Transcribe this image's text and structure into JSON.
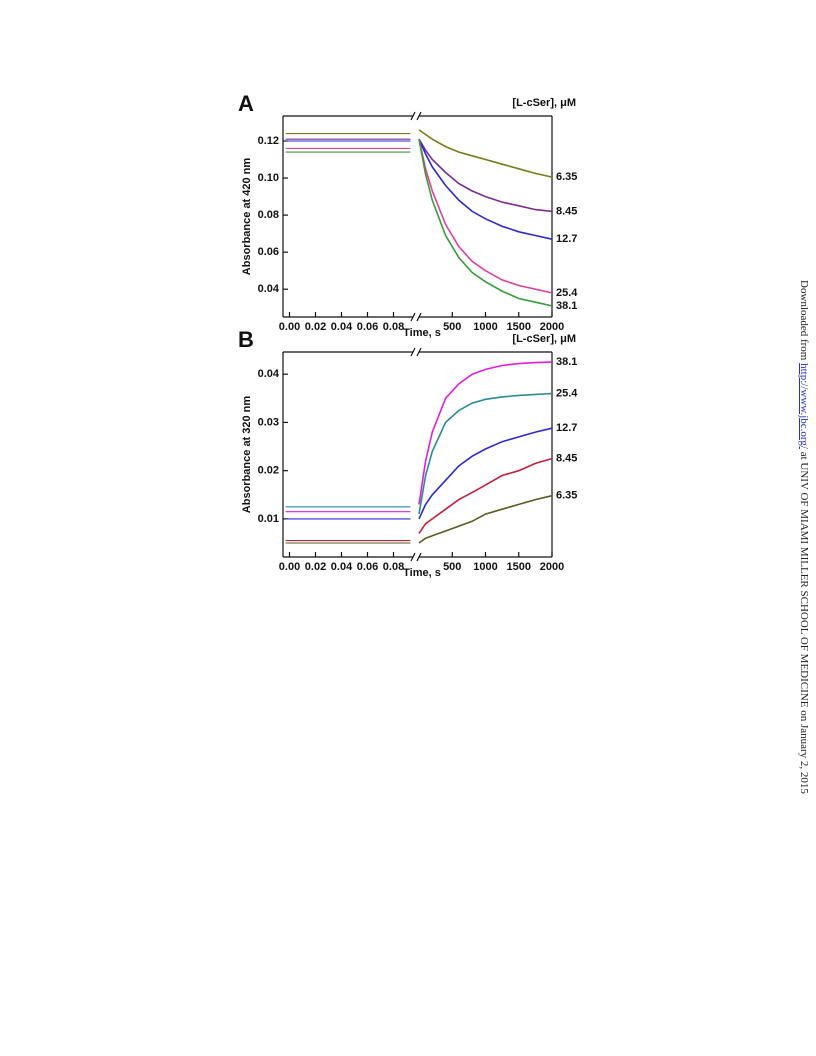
{
  "chart_data": [
    {
      "type": "line",
      "panel": "A",
      "legend_title": "[L-cSer], μM",
      "ylabel": "Absorbance at 420 nm",
      "xlabel": "Time, s",
      "ylim": [
        0.025,
        0.1335
      ],
      "yticks": [
        0.04,
        0.06,
        0.08,
        {
          "value": 0.1,
          "label": "0.10"
        },
        0.12
      ],
      "xlim_left": [
        -0.005,
        0.095
      ],
      "xticks_left": [
        {
          "value": 0,
          "label": "0.00"
        },
        0.02,
        0.04,
        0.06,
        0.08
      ],
      "xlim_right": [
        0,
        2000
      ],
      "xticks_right": [
        500,
        1000,
        1500,
        2000
      ],
      "series": [
        {
          "name": "6.35",
          "color": "#7a7a1a",
          "left": {
            "x": [
              -0.003,
              0.093
            ],
            "values": [
              0.124,
              0.124
            ]
          },
          "right": {
            "x": [
              0,
              100,
              200,
              400,
              600,
              800,
              1000,
              1250,
              1500,
              1750,
              2000
            ],
            "values": [
              0.126,
              0.1235,
              0.121,
              0.117,
              0.114,
              0.112,
              0.11,
              0.1075,
              0.105,
              0.1025,
              0.1005
            ]
          }
        },
        {
          "name": "8.45",
          "color": "#7b2d8e",
          "left": {
            "x": [
              -0.003,
              0.093
            ],
            "values": [
              0.121,
              0.121
            ]
          },
          "right": {
            "x": [
              0,
              100,
              200,
              400,
              600,
              800,
              1000,
              1250,
              1500,
              1750,
              2000
            ],
            "values": [
              0.121,
              0.115,
              0.11,
              0.103,
              0.097,
              0.093,
              0.09,
              0.087,
              0.085,
              0.083,
              0.082
            ]
          }
        },
        {
          "name": "12.7",
          "color": "#2a2ad0",
          "left": {
            "x": [
              -0.003,
              0.093
            ],
            "values": [
              0.12,
              0.12
            ]
          },
          "right": {
            "x": [
              0,
              100,
              200,
              400,
              600,
              800,
              1000,
              1250,
              1500,
              1750,
              2000
            ],
            "values": [
              0.121,
              0.113,
              0.106,
              0.096,
              0.088,
              0.082,
              0.078,
              0.074,
              0.071,
              0.069,
              0.067
            ]
          }
        },
        {
          "name": "25.4",
          "color": "#e0409a",
          "left": {
            "x": [
              -0.003,
              0.093
            ],
            "values": [
              0.116,
              0.116
            ]
          },
          "right": {
            "x": [
              0,
              100,
              200,
              400,
              600,
              800,
              1000,
              1250,
              1500,
              1750,
              2000
            ],
            "values": [
              0.121,
              0.105,
              0.093,
              0.075,
              0.063,
              0.055,
              0.05,
              0.045,
              0.042,
              0.04,
              0.038
            ]
          }
        },
        {
          "name": "38.1",
          "color": "#3a9a3a",
          "left": {
            "x": [
              -0.003,
              0.093
            ],
            "values": [
              0.114,
              0.114
            ]
          },
          "right": {
            "x": [
              0,
              100,
              200,
              400,
              600,
              800,
              1000,
              1250,
              1500,
              1750,
              2000
            ],
            "values": [
              0.121,
              0.102,
              0.088,
              0.069,
              0.057,
              0.049,
              0.044,
              0.039,
              0.035,
              0.033,
              0.031
            ]
          }
        }
      ]
    },
    {
      "type": "line",
      "panel": "B",
      "legend_title": "[L-cSer], μM",
      "ylabel": "Absorbance at 320 nm",
      "xlabel": "Time, s",
      "ylim": [
        0.0021,
        0.0446
      ],
      "yticks": [
        0.01,
        0.02,
        0.03,
        0.04
      ],
      "xlim_left": [
        -0.005,
        0.095
      ],
      "xticks_left": [
        {
          "value": 0,
          "label": "0.00"
        },
        0.02,
        0.04,
        0.06,
        0.08
      ],
      "xlim_right": [
        0,
        2000
      ],
      "xticks_right": [
        500,
        1000,
        1500,
        2000
      ],
      "series": [
        {
          "name": "38.1",
          "color": "#e020d8",
          "left": {
            "x": [
              -0.003,
              0.093
            ],
            "values": [
              0.0115,
              0.0115
            ]
          },
          "right": {
            "x": [
              0,
              100,
              200,
              400,
              600,
              800,
              1000,
              1250,
              1500,
              1750,
              2000
            ],
            "values": [
              0.013,
              0.022,
              0.028,
              0.035,
              0.038,
              0.04,
              0.041,
              0.0418,
              0.0422,
              0.0424,
              0.0425
            ]
          }
        },
        {
          "name": "25.4",
          "color": "#2a8a9a",
          "left": {
            "x": [
              -0.003,
              0.093
            ],
            "values": [
              0.0125,
              0.0125
            ]
          },
          "right": {
            "x": [
              0,
              100,
              200,
              400,
              600,
              800,
              1000,
              1250,
              1500,
              1750,
              2000
            ],
            "values": [
              0.011,
              0.019,
              0.024,
              0.03,
              0.0325,
              0.034,
              0.0348,
              0.0353,
              0.0356,
              0.0358,
              0.036
            ]
          }
        },
        {
          "name": "12.7",
          "color": "#2a2ad0",
          "left": {
            "x": [
              -0.003,
              0.093
            ],
            "values": [
              0.01,
              0.01
            ]
          },
          "right": {
            "x": [
              0,
              100,
              200,
              400,
              600,
              800,
              1000,
              1250,
              1500,
              1750,
              2000
            ],
            "values": [
              0.01,
              0.013,
              0.015,
              0.018,
              0.021,
              0.023,
              0.0245,
              0.026,
              0.027,
              0.028,
              0.0288
            ]
          }
        },
        {
          "name": "8.45",
          "color": "#c0203a",
          "left": {
            "x": [
              -0.003,
              0.093
            ],
            "values": [
              0.0055,
              0.0055
            ]
          },
          "right": {
            "x": [
              0,
              100,
              200,
              400,
              600,
              800,
              1000,
              1250,
              1500,
              1750,
              2000
            ],
            "values": [
              0.007,
              0.009,
              0.01,
              0.012,
              0.014,
              0.0155,
              0.017,
              0.019,
              0.02,
              0.0215,
              0.0225
            ]
          }
        },
        {
          "name": "6.35",
          "color": "#5a5a20",
          "left": {
            "x": [
              -0.003,
              0.093
            ],
            "values": [
              0.005,
              0.005
            ]
          },
          "right": {
            "x": [
              0,
              100,
              200,
              400,
              600,
              800,
              1000,
              1250,
              1500,
              1750,
              2000
            ],
            "values": [
              0.005,
              0.006,
              0.0065,
              0.0075,
              0.0085,
              0.0095,
              0.011,
              0.012,
              0.013,
              0.014,
              0.0148
            ]
          }
        }
      ]
    }
  ],
  "side_note": {
    "prefix": "Downloaded from ",
    "link": "http://www.jbc.org/",
    "suffix": " at UNIV OF MIAMI MILLER SCHOOL OF MEDICINE on January 2, 2015"
  }
}
